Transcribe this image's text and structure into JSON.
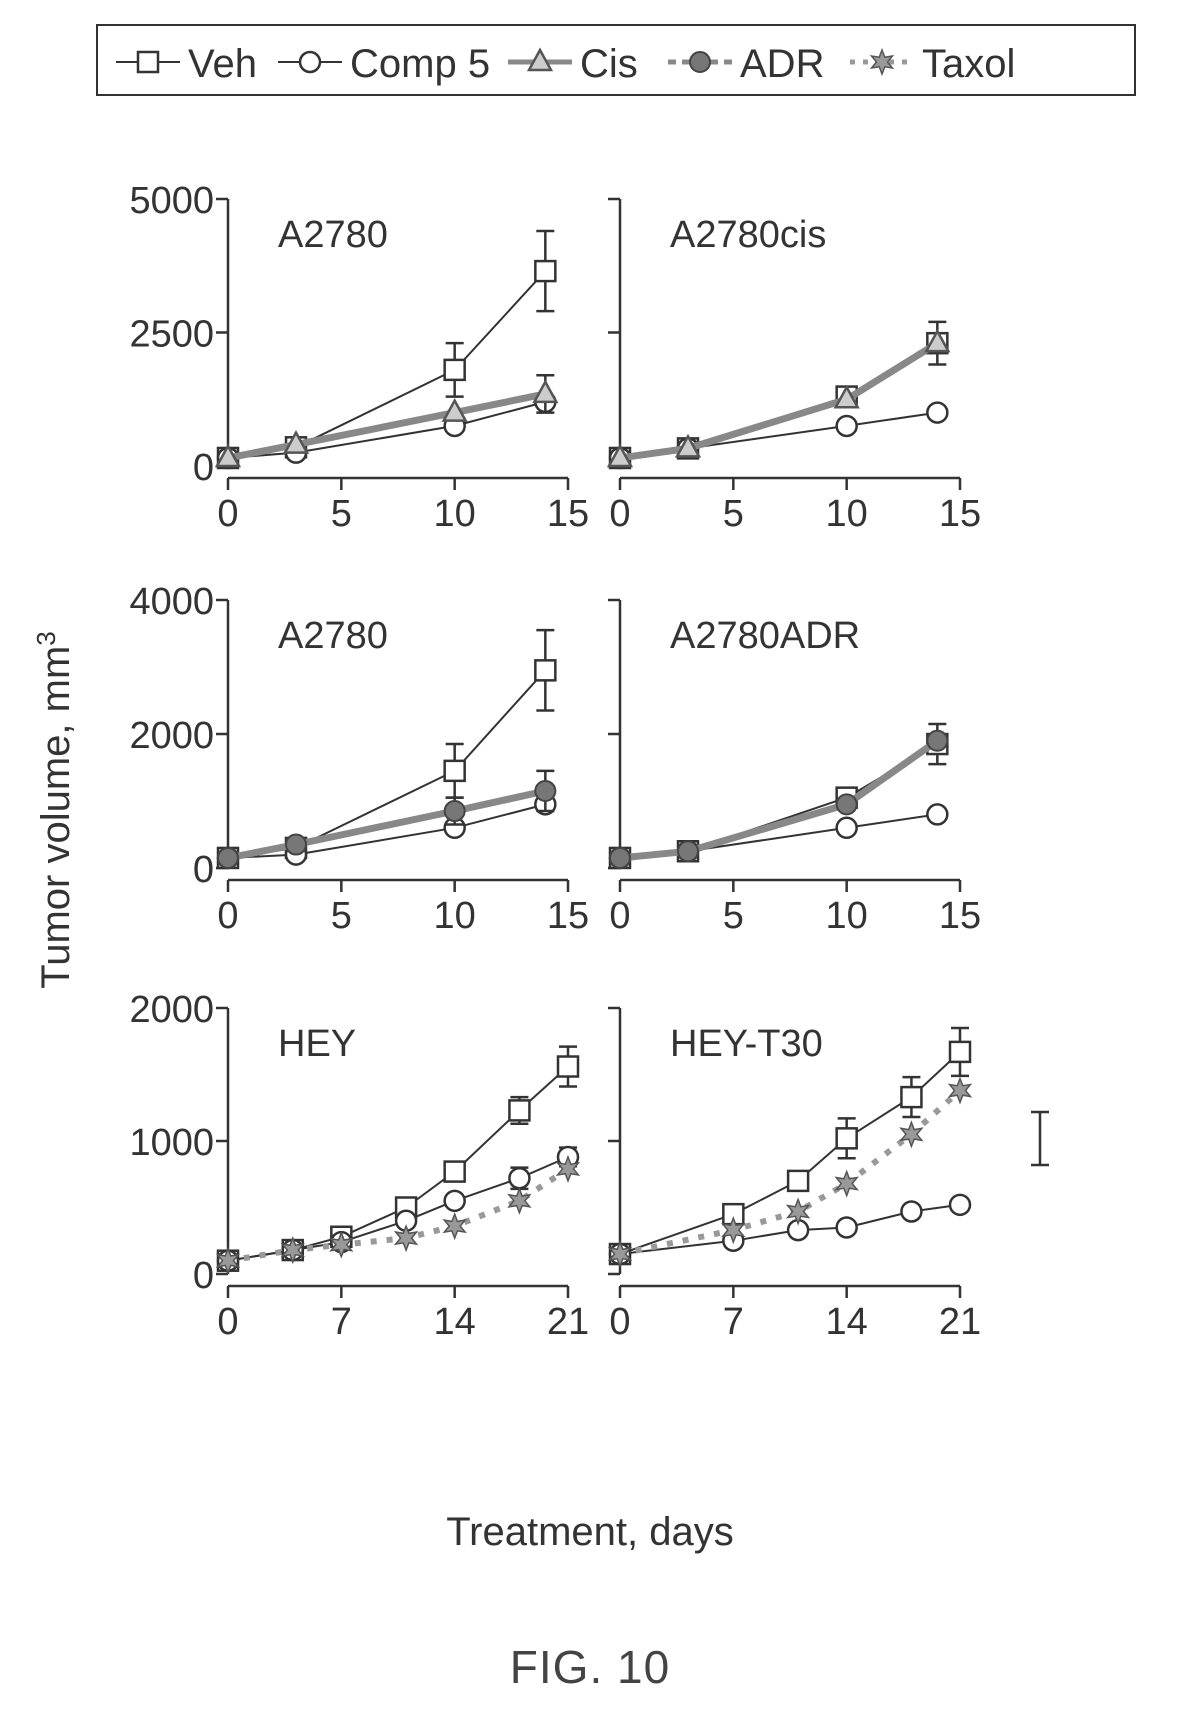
{
  "legend": {
    "entries": [
      {
        "label": "Veh",
        "marker": "square",
        "dash": "none"
      },
      {
        "label": "Comp 5",
        "marker": "circle",
        "dash": "none"
      },
      {
        "label": "Cis",
        "marker": "triangle",
        "dash": "thick"
      },
      {
        "label": "ADR",
        "marker": "dot",
        "dash": "dashed"
      },
      {
        "label": "Taxol",
        "marker": "star",
        "dash": "dotted"
      }
    ]
  },
  "ylabel_text": "Tumor volume, mm",
  "ylabel_sup": "3",
  "xlabel": "Treatment, days",
  "caption": "FIG. 10",
  "chart_data": [
    {
      "type": "line",
      "title": "A2780",
      "xlim": [
        0,
        15
      ],
      "ylim": [
        0,
        5000
      ],
      "xticks": [
        0,
        5,
        10,
        15
      ],
      "yticks": [
        0,
        2500,
        5000
      ],
      "ytick_labels_shown": true,
      "series": [
        {
          "name": "Veh",
          "x": [
            0,
            3,
            10,
            14
          ],
          "y": [
            150,
            350,
            1800,
            3650
          ],
          "err": [
            0,
            0,
            500,
            750
          ]
        },
        {
          "name": "Comp 5",
          "x": [
            0,
            3,
            10,
            14
          ],
          "y": [
            150,
            250,
            750,
            1200
          ],
          "err": [
            0,
            0,
            0,
            0
          ]
        },
        {
          "name": "Cis",
          "x": [
            0,
            3,
            10,
            14
          ],
          "y": [
            150,
            400,
            1000,
            1350
          ],
          "err": [
            0,
            0,
            0,
            350
          ]
        }
      ]
    },
    {
      "type": "line",
      "title": "A2780cis",
      "xlim": [
        0,
        15
      ],
      "ylim": [
        0,
        5000
      ],
      "xticks": [
        0,
        5,
        10,
        15
      ],
      "yticks": [
        0,
        2500,
        5000
      ],
      "ytick_labels_shown": false,
      "series": [
        {
          "name": "Veh",
          "x": [
            0,
            3,
            10,
            14
          ],
          "y": [
            150,
            330,
            1300,
            2300
          ],
          "err": [
            0,
            0,
            0,
            400
          ]
        },
        {
          "name": "Comp 5",
          "x": [
            0,
            3,
            10,
            14
          ],
          "y": [
            150,
            330,
            750,
            1000
          ],
          "err": [
            0,
            0,
            0,
            0
          ]
        },
        {
          "name": "Cis",
          "x": [
            0,
            3,
            10,
            14
          ],
          "y": [
            150,
            330,
            1250,
            2300
          ],
          "err": [
            0,
            0,
            0,
            0
          ]
        }
      ]
    },
    {
      "type": "line",
      "title": "A2780",
      "xlim": [
        0,
        15
      ],
      "ylim": [
        0,
        4000
      ],
      "xticks": [
        0,
        5,
        10,
        15
      ],
      "yticks": [
        0,
        2000,
        4000
      ],
      "ytick_labels_shown": true,
      "series": [
        {
          "name": "Veh",
          "x": [
            0,
            3,
            10,
            14
          ],
          "y": [
            150,
            300,
            1450,
            2950
          ],
          "err": [
            0,
            0,
            400,
            600
          ]
        },
        {
          "name": "Comp 5",
          "x": [
            0,
            3,
            10,
            14
          ],
          "y": [
            150,
            200,
            600,
            950
          ],
          "err": [
            0,
            0,
            0,
            0
          ]
        },
        {
          "name": "ADR",
          "x": [
            0,
            3,
            10,
            14
          ],
          "y": [
            150,
            350,
            850,
            1150
          ],
          "err": [
            0,
            0,
            200,
            300
          ]
        }
      ]
    },
    {
      "type": "line",
      "title": "A2780ADR",
      "xlim": [
        0,
        15
      ],
      "ylim": [
        0,
        4000
      ],
      "xticks": [
        0,
        5,
        10,
        15
      ],
      "yticks": [
        0,
        2000,
        4000
      ],
      "ytick_labels_shown": false,
      "series": [
        {
          "name": "Veh",
          "x": [
            0,
            3,
            10,
            14
          ],
          "y": [
            150,
            250,
            1050,
            1850
          ],
          "err": [
            0,
            0,
            0,
            300
          ]
        },
        {
          "name": "Comp 5",
          "x": [
            0,
            3,
            10,
            14
          ],
          "y": [
            150,
            250,
            600,
            800
          ],
          "err": [
            0,
            0,
            0,
            0
          ]
        },
        {
          "name": "ADR",
          "x": [
            0,
            3,
            10,
            14
          ],
          "y": [
            150,
            250,
            950,
            1900
          ],
          "err": [
            0,
            0,
            0,
            0
          ]
        }
      ]
    },
    {
      "type": "line",
      "title": "HEY",
      "xlim": [
        0,
        21
      ],
      "ylim": [
        0,
        2000
      ],
      "xticks": [
        0,
        7,
        14,
        21
      ],
      "yticks": [
        0,
        1000,
        2000
      ],
      "ytick_labels_shown": true,
      "series": [
        {
          "name": "Veh",
          "x": [
            0,
            4,
            7,
            11,
            14,
            18,
            21
          ],
          "y": [
            100,
            180,
            280,
            500,
            770,
            1230,
            1560
          ],
          "err": [
            0,
            0,
            0,
            0,
            0,
            100,
            150
          ]
        },
        {
          "name": "Comp 5",
          "x": [
            0,
            4,
            7,
            11,
            14,
            18,
            21
          ],
          "y": [
            100,
            180,
            240,
            400,
            550,
            720,
            880
          ],
          "err": [
            0,
            0,
            0,
            0,
            0,
            80,
            70
          ]
        },
        {
          "name": "Taxol",
          "x": [
            0,
            4,
            7,
            11,
            14,
            18,
            21
          ],
          "y": [
            100,
            180,
            220,
            270,
            360,
            550,
            790
          ],
          "err": [
            0,
            0,
            0,
            0,
            0,
            0,
            0
          ]
        }
      ]
    },
    {
      "type": "line",
      "title": "HEY-T30",
      "xlim": [
        0,
        21
      ],
      "ylim": [
        0,
        2000
      ],
      "xticks": [
        0,
        7,
        14,
        21
      ],
      "yticks": [
        0,
        1000,
        2000
      ],
      "ytick_labels_shown": false,
      "series": [
        {
          "name": "Veh",
          "x": [
            0,
            7,
            11,
            14,
            18,
            21
          ],
          "y": [
            150,
            450,
            700,
            1020,
            1330,
            1670
          ],
          "err": [
            0,
            0,
            0,
            150,
            150,
            180
          ]
        },
        {
          "name": "Comp 5",
          "x": [
            0,
            7,
            11,
            14,
            18,
            21
          ],
          "y": [
            150,
            250,
            330,
            350,
            470,
            520
          ],
          "err": [
            0,
            0,
            0,
            0,
            0,
            0
          ]
        },
        {
          "name": "Taxol",
          "x": [
            0,
            7,
            11,
            14,
            18,
            21
          ],
          "y": [
            150,
            330,
            470,
            680,
            1050,
            1380
          ],
          "err": [
            0,
            0,
            0,
            0,
            0,
            0
          ]
        }
      ]
    }
  ]
}
